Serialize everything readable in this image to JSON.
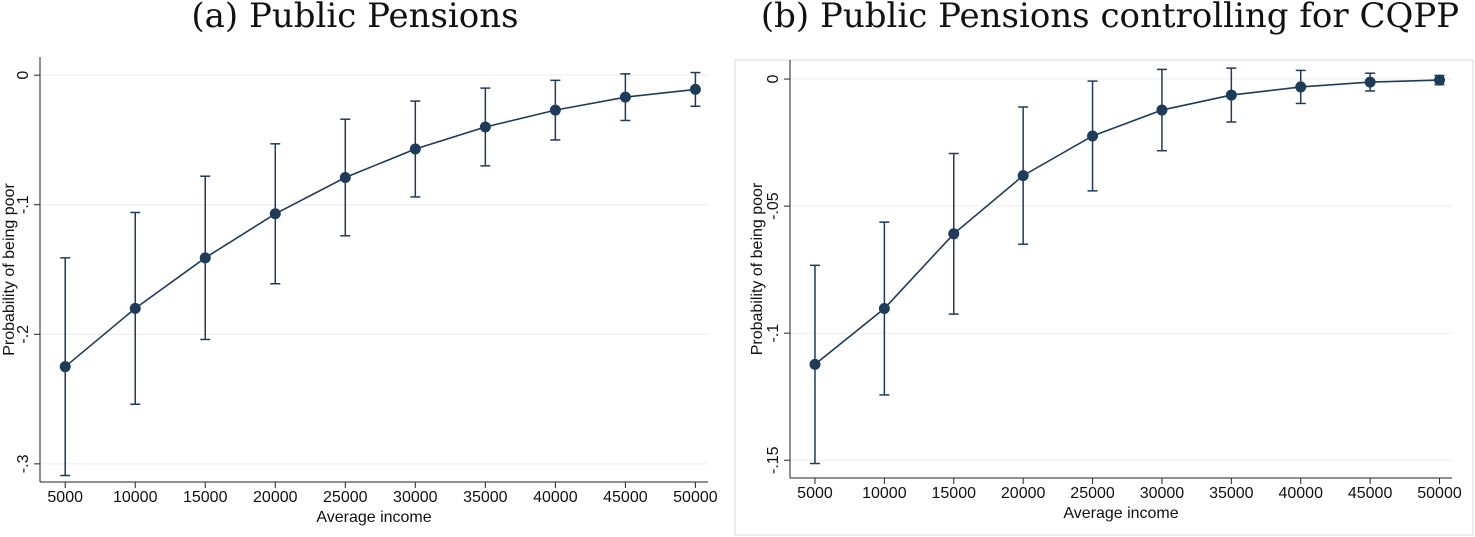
{
  "chart_data": [
    {
      "type": "line",
      "title": "(a) Public Pensions",
      "x_label": "Average income",
      "y_label": "Probability of being poor",
      "x": [
        5000,
        10000,
        15000,
        20000,
        25000,
        30000,
        35000,
        40000,
        45000,
        50000
      ],
      "series": [
        {
          "color": "#1f3b5a",
          "values": [
            -0.225,
            -0.18,
            -0.141,
            -0.107,
            -0.079,
            -0.057,
            -0.04,
            -0.027,
            -0.017,
            -0.011
          ],
          "errors": [
            0.084,
            0.074,
            0.063,
            0.054,
            0.045,
            0.037,
            0.03,
            0.023,
            0.018,
            0.013
          ]
        }
      ],
      "xlim": [
        3200,
        50900
      ],
      "ylim": [
        -0.314,
        0.014
      ],
      "xticks": [
        5000,
        10000,
        15000,
        20000,
        25000,
        30000,
        35000,
        40000,
        45000,
        50000
      ],
      "yticks": [
        {
          "value": -0.3,
          "label": "-.3"
        },
        {
          "value": -0.2,
          "label": "-.2"
        },
        {
          "value": -0.1,
          "label": "-.1"
        },
        0
      ],
      "grid": true
    },
    {
      "type": "line",
      "title": "(b) Public Pensions controlling for CQPP",
      "x_label": "Average income",
      "y_label": "Probability of being poor",
      "x": [
        5000,
        10000,
        15000,
        20000,
        25000,
        30000,
        35000,
        40000,
        45000,
        50000
      ],
      "series": [
        {
          "color": "#1f3b5a",
          "values": [
            -0.1123,
            -0.0903,
            -0.0609,
            -0.038,
            -0.0224,
            -0.0122,
            -0.0063,
            -0.0031,
            -0.0012,
            -0.0004
          ],
          "errors": [
            0.039,
            0.034,
            0.0316,
            0.027,
            0.0216,
            0.016,
            0.0106,
            0.0065,
            0.0035,
            0.0018
          ]
        }
      ],
      "xlim": [
        3200,
        50900
      ],
      "ylim": [
        -0.157,
        0.0075
      ],
      "xticks": [
        5000,
        10000,
        15000,
        20000,
        25000,
        30000,
        35000,
        40000,
        45000,
        50000
      ],
      "yticks": [
        {
          "value": -0.15,
          "label": "-.15"
        },
        {
          "value": -0.1,
          "label": "-.1"
        },
        {
          "value": -0.05,
          "label": "-.05"
        },
        0
      ],
      "grid": true
    }
  ]
}
